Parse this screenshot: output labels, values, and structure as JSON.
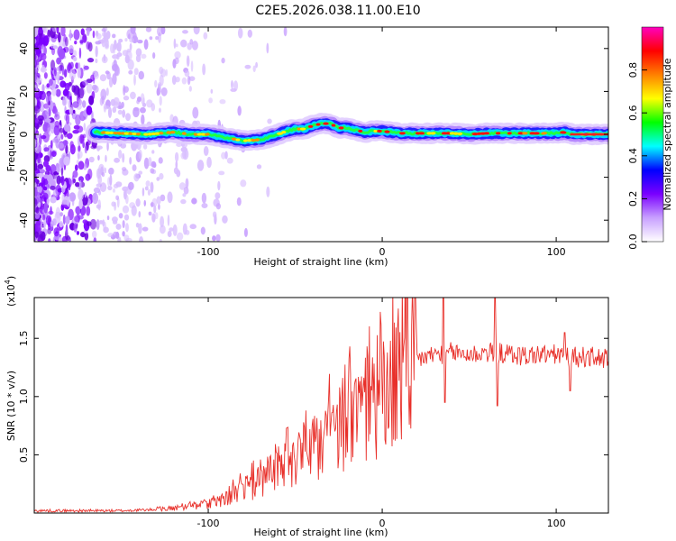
{
  "title": "C2E5.2026.038.11.00.E10",
  "chart_data": [
    {
      "type": "heatmap",
      "xlabel": "Height of straight line (km)",
      "ylabel": "Frequency (Hz)",
      "xlim": [
        -200,
        130
      ],
      "ylim": [
        -50,
        50
      ],
      "xticks": [
        -100,
        0,
        100
      ],
      "xtick_labels": [
        "-100",
        "0",
        "100"
      ],
      "yticks": [
        -40,
        -20,
        0,
        20,
        40
      ],
      "ytick_labels": [
        "-40",
        "-20",
        "0",
        "20",
        "40"
      ],
      "ridge_start_km": -165,
      "ridge": {
        "x": [
          -165,
          -150,
          -135,
          -120,
          -110,
          -100,
          -90,
          -80,
          -70,
          -60,
          -55,
          -50,
          -45,
          -40,
          -35,
          -30,
          -25,
          -20,
          -15,
          -10,
          -5,
          0,
          10,
          20,
          30,
          40,
          50,
          60,
          70,
          80,
          90,
          100,
          105,
          110,
          120,
          130
        ],
        "y": [
          1,
          0.5,
          0,
          1,
          0,
          0,
          -1.5,
          -3,
          -2.5,
          0,
          1.5,
          2.5,
          2.5,
          4,
          5,
          5,
          3,
          3,
          2,
          1,
          1.5,
          1.5,
          0.5,
          0.5,
          0.5,
          0.5,
          0,
          0.5,
          0.5,
          0.5,
          0.5,
          0.5,
          1,
          0,
          0,
          0
        ]
      },
      "colorbar": {
        "label": "Normalized spectral amplitude",
        "range": [
          0,
          1
        ],
        "ticks": [
          0,
          0.2,
          0.4,
          0.6,
          0.8
        ],
        "tick_labels": [
          "0.0",
          "0.2",
          "0.4",
          "0.6",
          "0.8"
        ],
        "colors": [
          "#ffffff",
          "#c8a0ff",
          "#7a00ff",
          "#0000ff",
          "#00ffff",
          "#00ff00",
          "#ffff00",
          "#ff8000",
          "#ff0000",
          "#ff00c0"
        ]
      }
    },
    {
      "type": "line",
      "xlabel": "Height of straight line (km)",
      "ylabel": "SNR (10 * v/v)",
      "multiplier": "(x10",
      "multiplier_exp": "4",
      "multiplier_close": ")",
      "xlim": [
        -200,
        130
      ],
      "ylim": [
        0,
        1.85
      ],
      "xticks": [
        -100,
        0,
        100
      ],
      "xtick_labels": [
        "-100",
        "0",
        "100"
      ],
      "yticks": [
        0.5,
        1.0,
        1.5
      ],
      "ytick_labels": [
        "0.5",
        "1.0",
        "1.5"
      ],
      "color": "#e8302a",
      "trend": {
        "x": [
          -200,
          -150,
          -130,
          -120,
          -100,
          -90,
          -80,
          -70,
          -60,
          -50,
          -40,
          -30,
          -20,
          -10,
          0,
          10,
          15,
          20,
          30,
          40,
          50,
          60,
          70,
          80,
          90,
          100,
          110,
          120,
          130
        ],
        "y": [
          0.02,
          0.02,
          0.03,
          0.04,
          0.08,
          0.12,
          0.2,
          0.28,
          0.36,
          0.45,
          0.55,
          0.65,
          0.78,
          0.9,
          0.98,
          1.1,
          1.25,
          1.32,
          1.36,
          1.38,
          1.36,
          1.38,
          1.37,
          1.35,
          1.36,
          1.36,
          1.34,
          1.34,
          1.32
        ]
      },
      "spikes": [
        {
          "x": 35,
          "y": 1.85
        },
        {
          "x": 36,
          "y": 0.95
        },
        {
          "x": 65,
          "y": 1.85
        },
        {
          "x": 66,
          "y": 0.92
        },
        {
          "x": 105,
          "y": 1.55
        },
        {
          "x": 108,
          "y": 1.05
        }
      ]
    }
  ]
}
